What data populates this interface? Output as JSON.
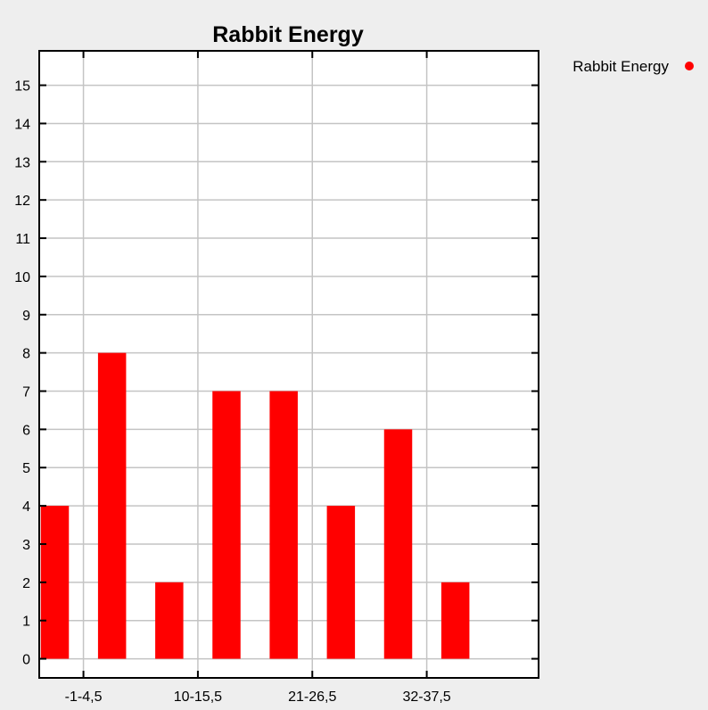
{
  "chart_data": {
    "type": "bar",
    "title": "Rabbit Energy",
    "xlabel": "",
    "ylabel": "",
    "ylim": [
      -0.5,
      15.9
    ],
    "yticks": [
      0,
      1,
      2,
      3,
      4,
      5,
      6,
      7,
      8,
      9,
      10,
      11,
      12,
      13,
      14,
      15
    ],
    "xlim": [
      -2.5,
      45.5
    ],
    "x_tick_positions": [
      1.75,
      12.75,
      23.75,
      34.75
    ],
    "x_tick_labels": [
      "-1-4,5",
      "10-15,5",
      "21-26,5",
      "32-37,5"
    ],
    "grid": true,
    "legend_position": "right",
    "series": [
      {
        "name": "Rabbit Energy",
        "color": "#ff0000",
        "bar_width": 2.7,
        "x": [
          -1,
          4.5,
          10,
          15.5,
          21,
          26.5,
          32,
          37.5
        ],
        "values": [
          4,
          8,
          2,
          7,
          7,
          4,
          6,
          2
        ]
      }
    ]
  }
}
